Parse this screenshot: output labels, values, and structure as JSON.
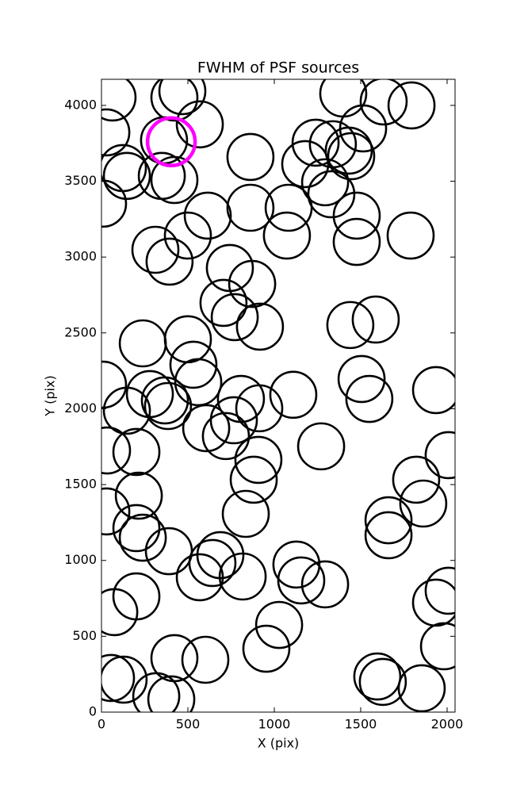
{
  "chart_data": {
    "type": "scatter",
    "title": "FWHM of PSF sources",
    "x_label": "X (pix)",
    "y_label": "Y (pix)",
    "xlim": [
      0,
      2046
    ],
    "ylim": [
      0,
      4172
    ],
    "xticks": [
      0,
      500,
      1000,
      1500,
      2000
    ],
    "yticks": [
      0,
      500,
      1000,
      1500,
      2000,
      2500,
      3000,
      3500,
      4000
    ],
    "grid": false,
    "series": [
      {
        "color": "#000000",
        "x": [
          64,
          422,
          468,
          569,
          28,
          362,
          124,
          147,
          349,
          422,
          9,
          862,
          615,
          500,
          312,
          394,
          862,
          1083,
          1073,
          1179,
          1239,
          1294,
          1330,
          1339,
          1399,
          1431,
          1514,
          1445,
          1633,
          1794,
          1477,
          1477,
          1789,
          743,
          872,
          706,
          771,
          917,
          1440,
          1587,
          239,
          500,
          532,
          560,
          9,
          147,
          280,
          367,
          385,
          807,
          913,
          1110,
          766,
          720,
          606,
          1271,
          1505,
          1550,
          1936,
          2009,
          32,
          202,
          908,
          881,
          28,
          216,
          202,
          239,
          835,
          390,
          688,
          642,
          569,
          817,
          1128,
          1156,
          1294,
          1661,
          1661,
          1821,
          1862,
          202,
          2009,
          1936,
          1982,
          74,
          1028,
          954,
          422,
          601,
          55,
          128,
          317,
          404,
          1596,
          1628,
          1853
        ],
        "y": [
          4052,
          4052,
          4094,
          3875,
          3822,
          3770,
          3587,
          3535,
          3535,
          3508,
          3352,
          3660,
          3273,
          3142,
          3048,
          2970,
          3325,
          3325,
          3142,
          3613,
          3754,
          3493,
          3414,
          3744,
          4078,
          3702,
          3848,
          3665,
          4026,
          4000,
          3273,
          3100,
          3142,
          2928,
          2823,
          2698,
          2604,
          2541,
          2552,
          2588,
          2431,
          2458,
          2290,
          2175,
          2159,
          1987,
          2097,
          2055,
          2018,
          2065,
          2003,
          2092,
          1924,
          1820,
          1872,
          1752,
          2196,
          2065,
          2123,
          1694,
          1725,
          1715,
          1663,
          1532,
          1323,
          1427,
          1213,
          1150,
          1307,
          1061,
          1035,
          983,
          889,
          894,
          973,
          868,
          842,
          1265,
          1166,
          1532,
          1375,
          763,
          800,
          722,
          434,
          659,
          575,
          418,
          356,
          345,
          225,
          214,
          105,
          84,
          235,
          199,
          157
        ]
      },
      {
        "color": "#ff00ff",
        "x": [
          404
        ],
        "y": [
          3760
        ]
      }
    ]
  }
}
